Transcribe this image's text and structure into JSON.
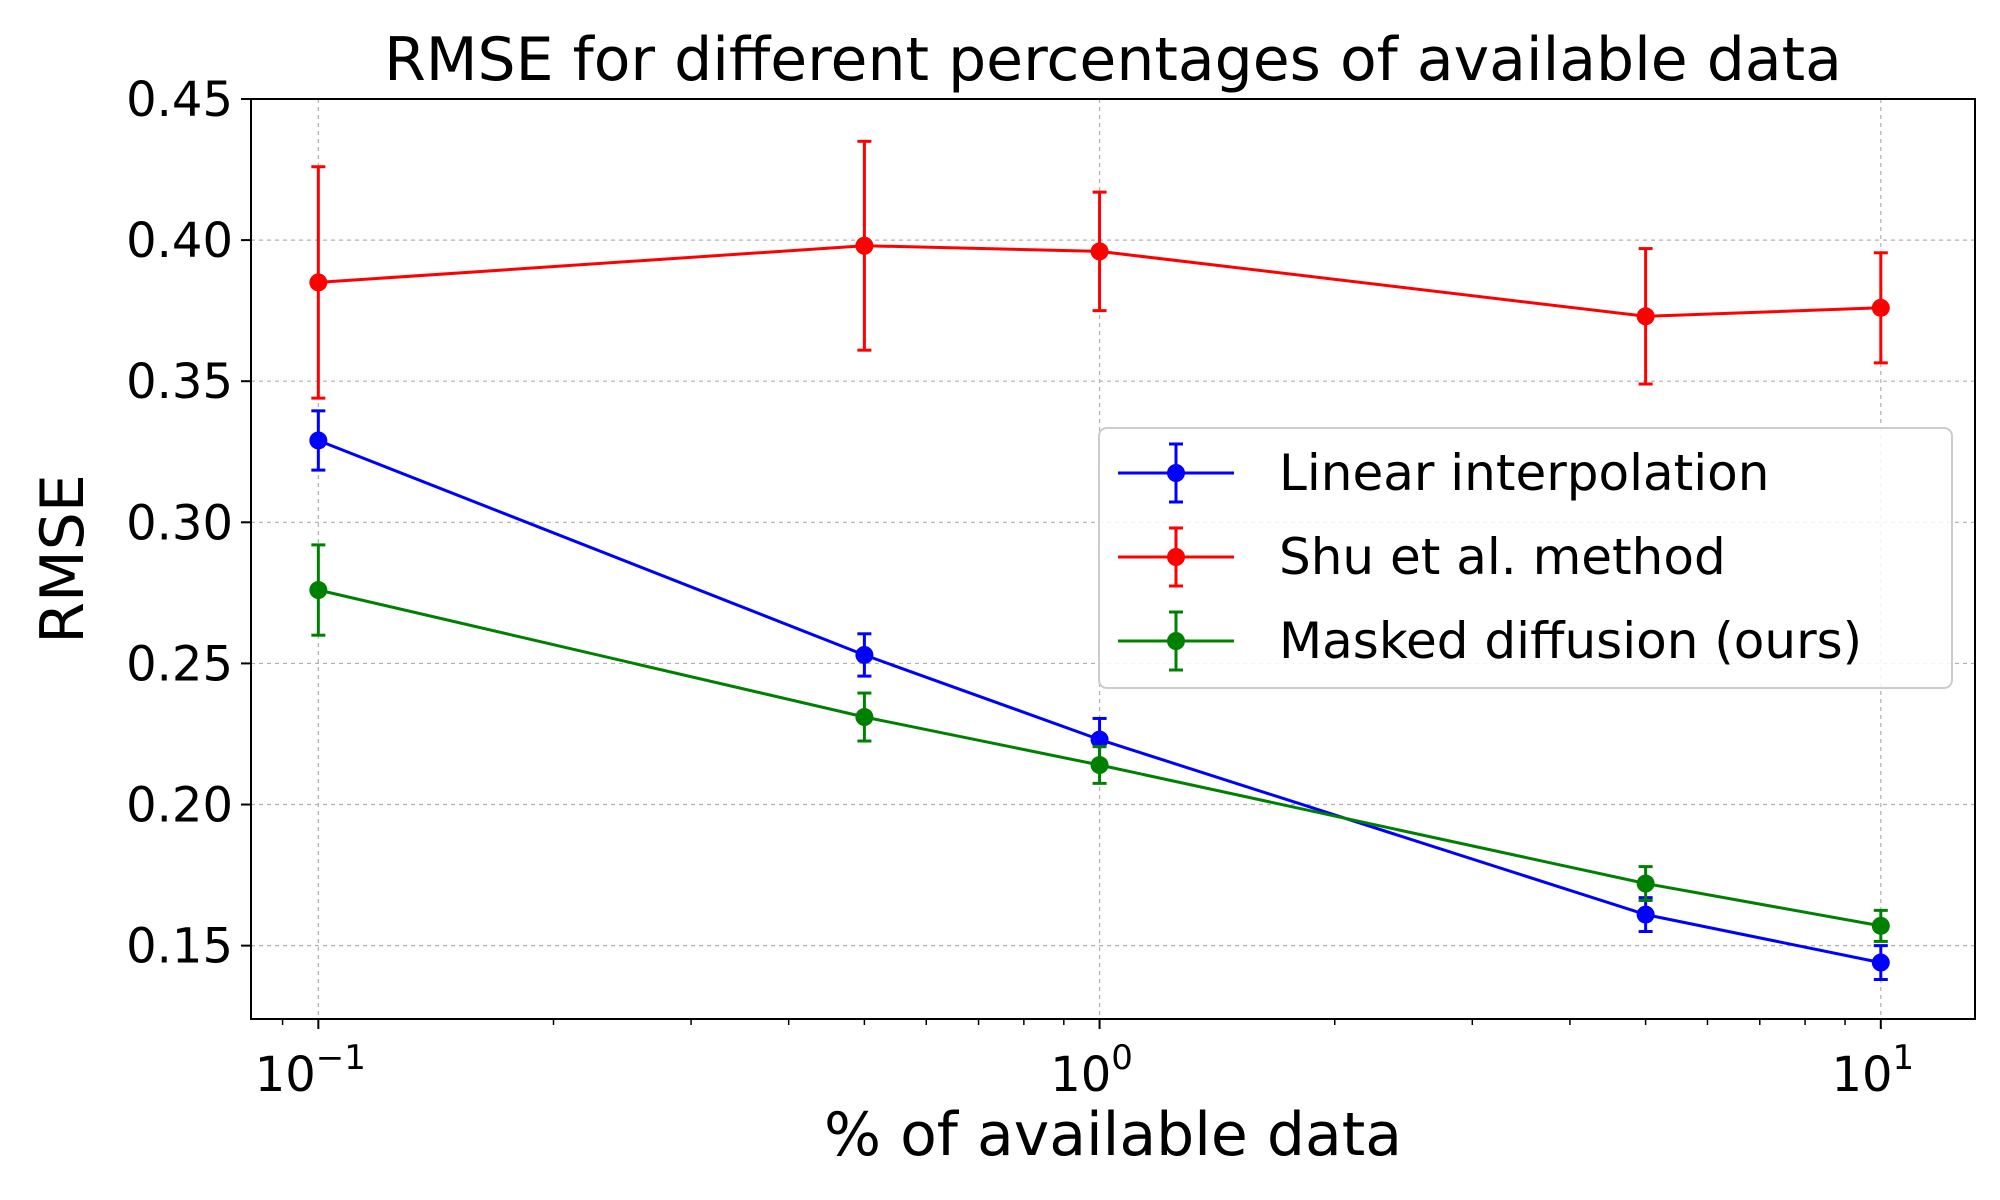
{
  "chart_data": {
    "type": "line",
    "title": "RMSE for different percentages of available data",
    "xlabel": "% of available data",
    "ylabel": "RMSE",
    "xscale": "log",
    "xlim": [
      0.082,
      13.2
    ],
    "ylim": [
      0.124,
      0.45
    ],
    "x": [
      0.1,
      0.5,
      1,
      5,
      10
    ],
    "x_ticks": [
      {
        "value": 0.1,
        "base": "10",
        "exp": "−1"
      },
      {
        "value": 1,
        "base": "10",
        "exp": "0"
      },
      {
        "value": 10,
        "base": "10",
        "exp": "1"
      }
    ],
    "y_ticks": [
      {
        "value": 0.15,
        "label": "0.15"
      },
      {
        "value": 0.2,
        "label": "0.20"
      },
      {
        "value": 0.25,
        "label": "0.25"
      },
      {
        "value": 0.3,
        "label": "0.30"
      },
      {
        "value": 0.35,
        "label": "0.35"
      },
      {
        "value": 0.4,
        "label": "0.40"
      },
      {
        "value": 0.45,
        "label": "0.45"
      }
    ],
    "grid": true,
    "legend_position": "center-right",
    "series": [
      {
        "name": "Linear interpolation",
        "color": "#0000ff",
        "values": [
          0.329,
          0.253,
          0.223,
          0.161,
          0.144
        ],
        "errors": [
          0.0105,
          0.0075,
          0.0075,
          0.006,
          0.006
        ]
      },
      {
        "name": "Shu et al. method",
        "color": "#ff0000",
        "values": [
          0.385,
          0.398,
          0.396,
          0.373,
          0.376
        ],
        "errors": [
          0.041,
          0.037,
          0.021,
          0.024,
          0.0195
        ]
      },
      {
        "name": "Masked diffusion (ours)",
        "color": "#008000",
        "values": [
          0.276,
          0.231,
          0.214,
          0.172,
          0.157
        ],
        "errors": [
          0.016,
          0.0085,
          0.0065,
          0.006,
          0.0055
        ]
      }
    ]
  }
}
